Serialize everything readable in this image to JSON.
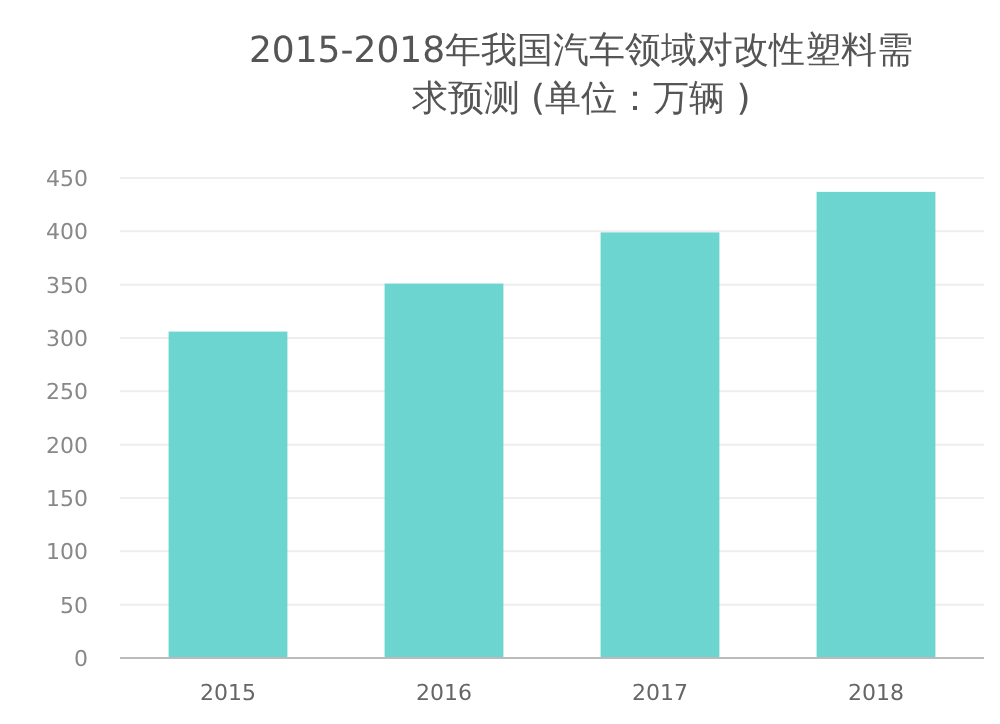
{
  "chart_data": {
    "type": "bar",
    "title": "2015-2018年我国汽车领域对改性塑料需求预测 (单位：万辆 )",
    "categories": [
      "2015",
      "2016",
      "2017",
      "2018"
    ],
    "values": [
      306,
      351,
      399,
      437
    ],
    "color": "#6dd5d0",
    "ylim": [
      0,
      450
    ],
    "yticks": [
      0,
      50,
      100,
      150,
      200,
      250,
      300,
      350,
      400,
      450
    ],
    "grid": "y"
  }
}
